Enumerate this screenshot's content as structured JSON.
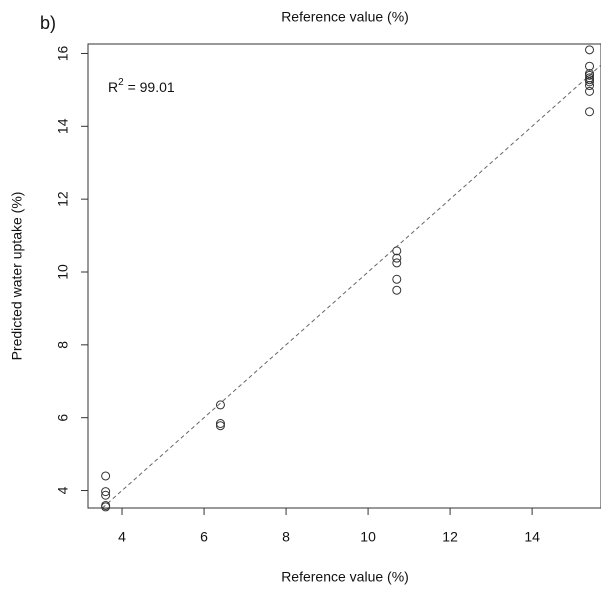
{
  "chart_data": {
    "type": "scatter",
    "panel_label": "b)",
    "title": "Reference value (%)",
    "x_label": "Reference value (%)",
    "y_label": "Predicted water uptake (%)",
    "annotation": {
      "base": "R",
      "sup": "2",
      "rest": " = 99.01"
    },
    "x": [
      3.6,
      3.6,
      3.6,
      3.6,
      3.6,
      6.4,
      6.4,
      6.4,
      10.7,
      10.7,
      10.7,
      10.7,
      10.7,
      15.4,
      15.4,
      15.4,
      15.4,
      15.4,
      15.4,
      15.4,
      15.4,
      15.4,
      15.4
    ],
    "y": [
      4.4,
      3.97,
      3.87,
      3.59,
      3.55,
      6.35,
      5.84,
      5.78,
      10.58,
      10.38,
      10.25,
      9.8,
      9.5,
      16.1,
      15.65,
      15.45,
      15.4,
      15.33,
      15.28,
      15.22,
      15.12,
      14.96,
      14.4
    ],
    "color": "#333333",
    "identity_line": true,
    "xlim": [
      3.17,
      15.68
    ],
    "xticks": [
      4,
      6,
      8,
      10,
      12,
      14
    ],
    "ylim": [
      3.52,
      16.26
    ],
    "yticks": [
      4,
      6,
      8,
      10,
      12,
      14,
      16
    ]
  }
}
